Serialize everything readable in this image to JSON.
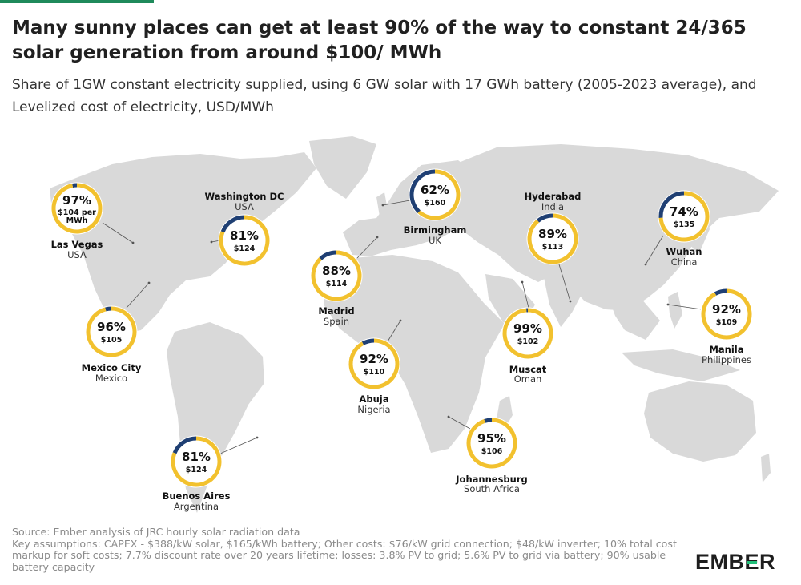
{
  "header": {
    "title": "Many sunny places can get at least 90% of the way to constant 24/365 solar generation from around $100/ MWh",
    "subtitle": "Share of 1GW constant electricity supplied, using 6 GW solar with 17 GWh battery (2005-2023 average), and Levelized cost of electricity, USD/MWh"
  },
  "colors": {
    "accent": "#1f8a5b",
    "solar": "#f2c12e",
    "gap": "#1f3f73",
    "land": "#d8d8d8",
    "logo_bar": "#22c07a"
  },
  "chart_data": {
    "type": "donut-map",
    "title": "Many sunny places can get at least 90% of the way to constant 24/365 solar generation from around $100/ MWh",
    "series": [
      {
        "name": "Share of 1GW constant electricity supplied (%)"
      },
      {
        "name": "Levelized cost of electricity (USD/MWh)"
      }
    ],
    "cities": [
      {
        "city": "Las Vegas",
        "country": "USA",
        "share": 97,
        "cost_label": "$104 per MWh",
        "cost": 104
      },
      {
        "city": "Washington DC",
        "country": "USA",
        "share": 81,
        "cost_label": "$124",
        "cost": 124
      },
      {
        "city": "Mexico City",
        "country": "Mexico",
        "share": 96,
        "cost_label": "$105",
        "cost": 105
      },
      {
        "city": "Buenos Aires",
        "country": "Argentina",
        "share": 81,
        "cost_label": "$124",
        "cost": 124
      },
      {
        "city": "Madrid",
        "country": "Spain",
        "share": 88,
        "cost_label": "$114",
        "cost": 114
      },
      {
        "city": "Birmingham",
        "country": "UK",
        "share": 62,
        "cost_label": "$160",
        "cost": 160
      },
      {
        "city": "Abuja",
        "country": "Nigeria",
        "share": 92,
        "cost_label": "$110",
        "cost": 110
      },
      {
        "city": "Johannesburg",
        "country": "South Africa",
        "share": 95,
        "cost_label": "$106",
        "cost": 106
      },
      {
        "city": "Hyderabad",
        "country": "India",
        "share": 89,
        "cost_label": "$113",
        "cost": 113
      },
      {
        "city": "Muscat",
        "country": "Oman",
        "share": 99,
        "cost_label": "$102",
        "cost": 102
      },
      {
        "city": "Wuhan",
        "country": "China",
        "share": 74,
        "cost_label": "$135",
        "cost": 135
      },
      {
        "city": "Manila",
        "country": "Philippines",
        "share": 92,
        "cost_label": "$109",
        "cost": 109
      }
    ]
  },
  "footer": {
    "source": "Source: Ember analysis of JRC hourly solar radiation data",
    "assumptions": "Key assumptions: CAPEX - $388/kW solar, $165/kWh battery; Other costs: $76/kW grid connection; $48/kW inverter; 10% total cost markup for soft costs; 7.7% discount rate over 20 years lifetime; losses: 3.8% PV to grid; 5.6% PV to grid via battery; 90% usable battery capacity",
    "logo": "EMBER"
  }
}
